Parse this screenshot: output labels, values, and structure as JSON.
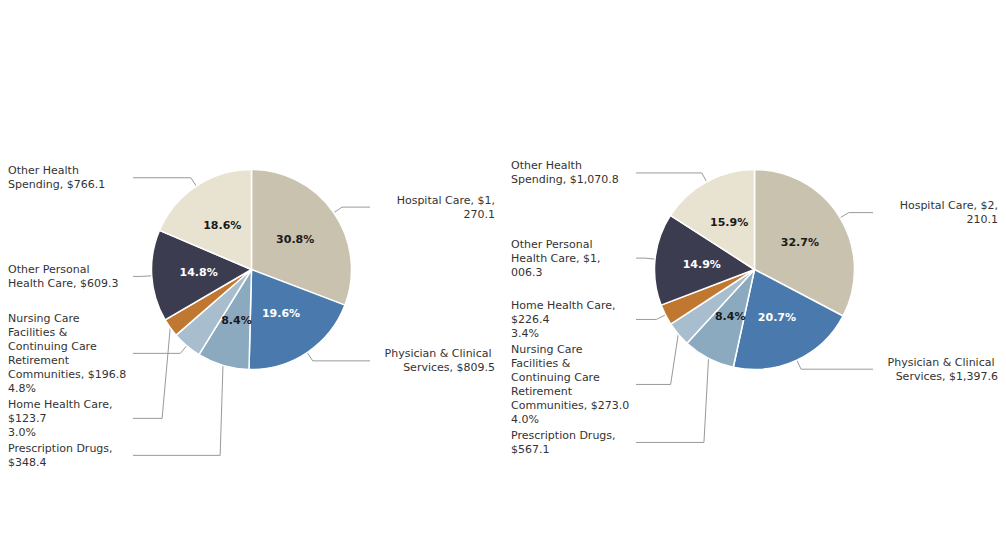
{
  "chart_data": [
    {
      "type": "pie",
      "categories": [
        "Hospital Care, $1,270.1",
        "Physician & Clinical Services, $809.5",
        "Prescription Drugs, $348.4",
        "Nursing Care Facilities & Continuing Care Retirement Communities, $196.8",
        "Home Health Care, $123.7",
        "Other Personal Health Care, $609.3",
        "Other Health Spending, $766.1"
      ],
      "values": [
        30.8,
        19.6,
        8.4,
        4.8,
        3.0,
        14.8,
        18.6
      ],
      "value_labels": [
        "30.8%",
        "19.6%",
        "8.4%",
        "4.8%",
        "3.0%",
        "14.8%",
        "18.6%"
      ],
      "colors": [
        "#c9c2ae",
        "#4a7aad",
        "#8baabf",
        "#a8bece",
        "#c07830",
        "#3c3c50",
        "#e8e2d0"
      ]
    },
    {
      "type": "pie",
      "categories": [
        "Hospital Care, $2,210.1",
        "Physician & Clinical Services, $1,397.6",
        "Prescription Drugs, $567.1",
        "Nursing Care Facilities & Continuing Care Retirement Communities, $273.0",
        "Home Health Care, $226.4",
        "Other Personal Health Care, $1,006.3",
        "Other Health Spending, $1,070.8"
      ],
      "values": [
        32.7,
        20.7,
        8.4,
        4.0,
        3.4,
        14.9,
        15.9
      ],
      "value_labels": [
        "32.7%",
        "20.7%",
        "8.4%",
        "4.0%",
        "3.4%",
        "14.9%",
        "15.9%"
      ],
      "colors": [
        "#c9c2ae",
        "#4a7aad",
        "#8baabf",
        "#a8bece",
        "#c07830",
        "#3c3c50",
        "#e8e2d0"
      ]
    }
  ]
}
